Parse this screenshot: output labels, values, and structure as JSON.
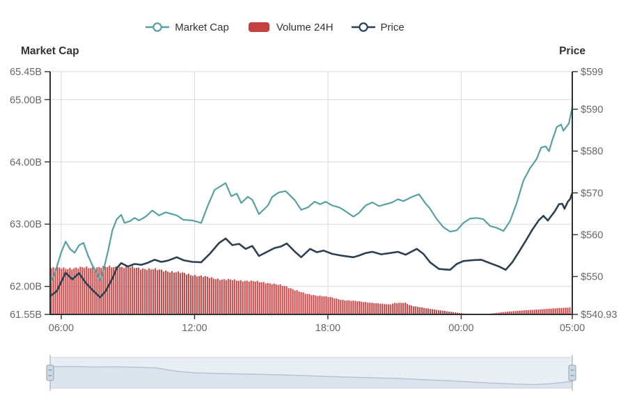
{
  "legend": {
    "items": [
      {
        "label": "Market Cap",
        "marker": "line-circle",
        "color": "#55a0a2"
      },
      {
        "label": "Volume 24H",
        "marker": "rect",
        "color": "#c54040"
      },
      {
        "label": "Price",
        "marker": "line-circle",
        "color": "#2c3f52"
      }
    ]
  },
  "colors": {
    "market_cap": "#55a0a2",
    "price": "#2c3f52",
    "volume": "#cb4343",
    "grid": "#d9d9d9",
    "axis_line": "#2f2f2f",
    "axis_label": "#666666",
    "title": "#333333"
  },
  "chart_data": {
    "type": "mixed",
    "x_axis": {
      "unit": "time",
      "domain_hours": [
        0,
        23.5
      ],
      "ticks": [
        {
          "label": "06:00",
          "t": 0.5
        },
        {
          "label": "12:00",
          "t": 6.5
        },
        {
          "label": "18:00",
          "t": 12.5
        },
        {
          "label": "00:00",
          "t": 18.5
        },
        {
          "label": "05:00",
          "t": 23.5
        }
      ]
    },
    "left_axis": {
      "title": "Market Cap",
      "range": [
        61.55,
        65.45
      ],
      "ticks": [
        {
          "value": 65.45,
          "label": "65.45B"
        },
        {
          "value": 65.0,
          "label": "65.00B"
        },
        {
          "value": 64.0,
          "label": "64.00B"
        },
        {
          "value": 63.0,
          "label": "63.00B"
        },
        {
          "value": 62.0,
          "label": "62.00B"
        },
        {
          "value": 61.55,
          "label": "61.55B"
        }
      ]
    },
    "right_axis": {
      "title": "Price",
      "range": [
        540.93,
        599
      ],
      "ticks": [
        {
          "value": 599,
          "label": "$599"
        },
        {
          "value": 590,
          "label": "$590"
        },
        {
          "value": 580,
          "label": "$580"
        },
        {
          "value": 570,
          "label": "$570"
        },
        {
          "value": 560,
          "label": "$560"
        },
        {
          "value": 550,
          "label": "$550"
        },
        {
          "value": 540.93,
          "label": "$540.93"
        }
      ]
    },
    "grid": true,
    "legend_position": "top",
    "series": [
      {
        "name": "Market Cap",
        "type": "line",
        "axis": "left",
        "color": "#55a0a2",
        "unit": "B",
        "points": [
          [
            0,
            62.05
          ],
          [
            0.2,
            62.2
          ],
          [
            0.5,
            62.55
          ],
          [
            0.7,
            62.72
          ],
          [
            0.9,
            62.6
          ],
          [
            1.1,
            62.54
          ],
          [
            1.3,
            62.66
          ],
          [
            1.5,
            62.7
          ],
          [
            1.7,
            62.5
          ],
          [
            1.9,
            62.34
          ],
          [
            2.1,
            62.22
          ],
          [
            2.25,
            62.1
          ],
          [
            2.4,
            62.26
          ],
          [
            2.6,
            62.56
          ],
          [
            2.8,
            62.9
          ],
          [
            3,
            63.08
          ],
          [
            3.2,
            63.15
          ],
          [
            3.35,
            63.02
          ],
          [
            3.6,
            63.05
          ],
          [
            3.8,
            63.1
          ],
          [
            4,
            63.06
          ],
          [
            4.3,
            63.12
          ],
          [
            4.6,
            63.22
          ],
          [
            4.9,
            63.14
          ],
          [
            5.2,
            63.19
          ],
          [
            5.5,
            63.16
          ],
          [
            5.7,
            63.14
          ],
          [
            6,
            63.07
          ],
          [
            6.4,
            63.06
          ],
          [
            6.8,
            63.02
          ],
          [
            7.1,
            63.3
          ],
          [
            7.4,
            63.55
          ],
          [
            7.9,
            63.66
          ],
          [
            8.15,
            63.45
          ],
          [
            8.4,
            63.49
          ],
          [
            8.6,
            63.34
          ],
          [
            8.9,
            63.44
          ],
          [
            9.1,
            63.39
          ],
          [
            9.4,
            63.16
          ],
          [
            9.8,
            63.3
          ],
          [
            10,
            63.44
          ],
          [
            10.3,
            63.51
          ],
          [
            10.6,
            63.53
          ],
          [
            11,
            63.39
          ],
          [
            11.3,
            63.23
          ],
          [
            11.6,
            63.27
          ],
          [
            11.9,
            63.36
          ],
          [
            12.15,
            63.32
          ],
          [
            12.4,
            63.36
          ],
          [
            12.7,
            63.3
          ],
          [
            13,
            63.27
          ],
          [
            13.2,
            63.23
          ],
          [
            13.65,
            63.12
          ],
          [
            13.9,
            63.18
          ],
          [
            14.2,
            63.3
          ],
          [
            14.5,
            63.35
          ],
          [
            14.8,
            63.29
          ],
          [
            15.1,
            63.32
          ],
          [
            15.4,
            63.35
          ],
          [
            15.65,
            63.4
          ],
          [
            15.9,
            63.37
          ],
          [
            16.3,
            63.44
          ],
          [
            16.6,
            63.48
          ],
          [
            16.9,
            63.33
          ],
          [
            17.1,
            63.25
          ],
          [
            17.4,
            63.08
          ],
          [
            17.7,
            62.95
          ],
          [
            18,
            62.88
          ],
          [
            18.3,
            62.9
          ],
          [
            18.6,
            63.02
          ],
          [
            18.9,
            63.09
          ],
          [
            19.2,
            63.1
          ],
          [
            19.5,
            63.08
          ],
          [
            19.8,
            62.97
          ],
          [
            20.1,
            62.94
          ],
          [
            20.4,
            62.89
          ],
          [
            20.7,
            63.05
          ],
          [
            21,
            63.34
          ],
          [
            21.3,
            63.7
          ],
          [
            21.6,
            63.9
          ],
          [
            21.9,
            64.05
          ],
          [
            22.1,
            64.23
          ],
          [
            22.3,
            64.25
          ],
          [
            22.45,
            64.17
          ],
          [
            22.6,
            64.35
          ],
          [
            22.8,
            64.56
          ],
          [
            23,
            64.6
          ],
          [
            23.1,
            64.5
          ],
          [
            23.25,
            64.57
          ],
          [
            23.35,
            64.62
          ],
          [
            23.5,
            64.88
          ]
        ]
      },
      {
        "name": "Price",
        "type": "line",
        "axis": "right",
        "color": "#2c3f52",
        "unit": "$",
        "points": [
          [
            0,
            545.3
          ],
          [
            0.3,
            546.5
          ],
          [
            0.7,
            550.9
          ],
          [
            1,
            549.3
          ],
          [
            1.3,
            550.8
          ],
          [
            1.6,
            548.5
          ],
          [
            1.9,
            546.8
          ],
          [
            2.25,
            545
          ],
          [
            2.5,
            546.5
          ],
          [
            2.8,
            549.5
          ],
          [
            3,
            552
          ],
          [
            3.2,
            553.2
          ],
          [
            3.5,
            552.4
          ],
          [
            3.8,
            553
          ],
          [
            4.1,
            552.8
          ],
          [
            4.4,
            553.3
          ],
          [
            4.7,
            554
          ],
          [
            5,
            553.5
          ],
          [
            5.3,
            553.8
          ],
          [
            5.7,
            554.6
          ],
          [
            6,
            553.9
          ],
          [
            6.4,
            553.5
          ],
          [
            6.8,
            553.4
          ],
          [
            7.2,
            555.5
          ],
          [
            7.6,
            558
          ],
          [
            7.9,
            559.1
          ],
          [
            8.2,
            557.5
          ],
          [
            8.5,
            557.8
          ],
          [
            8.8,
            556.6
          ],
          [
            9.1,
            557.3
          ],
          [
            9.4,
            554.9
          ],
          [
            9.8,
            556
          ],
          [
            10.1,
            556.8
          ],
          [
            10.4,
            557.2
          ],
          [
            10.65,
            557.9
          ],
          [
            11,
            556
          ],
          [
            11.3,
            554.6
          ],
          [
            11.7,
            556.6
          ],
          [
            12,
            555.8
          ],
          [
            12.3,
            556.2
          ],
          [
            12.7,
            555.4
          ],
          [
            13.1,
            555
          ],
          [
            13.65,
            554.6
          ],
          [
            13.9,
            555
          ],
          [
            14.2,
            555.6
          ],
          [
            14.5,
            555.9
          ],
          [
            14.9,
            555.3
          ],
          [
            15.3,
            555.6
          ],
          [
            15.65,
            555.9
          ],
          [
            16,
            555.2
          ],
          [
            16.5,
            556.6
          ],
          [
            16.8,
            555.4
          ],
          [
            17.1,
            553.4
          ],
          [
            17.5,
            551.8
          ],
          [
            18,
            551.6
          ],
          [
            18.3,
            553
          ],
          [
            18.6,
            553.7
          ],
          [
            19,
            553.9
          ],
          [
            19.4,
            554
          ],
          [
            19.8,
            553.2
          ],
          [
            20.2,
            552.4
          ],
          [
            20.5,
            551.6
          ],
          [
            20.8,
            553.4
          ],
          [
            21.1,
            555.9
          ],
          [
            21.4,
            558.5
          ],
          [
            21.7,
            561.2
          ],
          [
            22,
            563.5
          ],
          [
            22.2,
            564.5
          ],
          [
            22.4,
            563.4
          ],
          [
            22.7,
            565.5
          ],
          [
            22.9,
            567.3
          ],
          [
            23.05,
            567.4
          ],
          [
            23.15,
            566.2
          ],
          [
            23.3,
            567.9
          ],
          [
            23.4,
            568.5
          ],
          [
            23.5,
            570
          ]
        ]
      },
      {
        "name": "Volume 24H",
        "type": "bar",
        "axis": "relative",
        "color": "#cb4343",
        "unit": "relative (no labeled axis)",
        "points": [
          [
            0,
            0.97
          ],
          [
            1,
            0.97
          ],
          [
            2.1,
            0.99
          ],
          [
            3.2,
            1
          ],
          [
            4,
            0.97
          ],
          [
            5,
            0.93
          ],
          [
            5.9,
            0.87
          ],
          [
            6.8,
            0.8
          ],
          [
            7.8,
            0.73
          ],
          [
            8.7,
            0.71
          ],
          [
            9.7,
            0.67
          ],
          [
            10.6,
            0.59
          ],
          [
            11.5,
            0.43
          ],
          [
            12.6,
            0.36
          ],
          [
            13.2,
            0.3
          ],
          [
            14,
            0.27
          ],
          [
            14.7,
            0.23
          ],
          [
            15.3,
            0.21
          ],
          [
            15.5,
            0.24
          ],
          [
            16,
            0.24
          ],
          [
            16.2,
            0.19
          ],
          [
            16.9,
            0.13
          ],
          [
            17.8,
            0.07
          ],
          [
            18.4,
            0.03
          ],
          [
            18.8,
            0.01
          ],
          [
            19.5,
            0
          ],
          [
            19.9,
            0.02
          ],
          [
            20.6,
            0.06
          ],
          [
            21.5,
            0.09
          ],
          [
            22.2,
            0.11
          ],
          [
            22.8,
            0.13
          ],
          [
            23.5,
            0.15
          ]
        ]
      }
    ]
  },
  "navigator": {
    "points": [
      [
        0,
        0.3
      ],
      [
        1,
        0.29
      ],
      [
        2,
        0.31
      ],
      [
        3,
        0.3
      ],
      [
        4,
        0.32
      ],
      [
        4.8,
        0.34
      ],
      [
        5.6,
        0.44
      ],
      [
        6.5,
        0.5
      ],
      [
        8,
        0.53
      ],
      [
        9.5,
        0.55
      ],
      [
        11,
        0.58
      ],
      [
        12.5,
        0.62
      ],
      [
        14,
        0.65
      ],
      [
        15.5,
        0.68
      ],
      [
        17,
        0.73
      ],
      [
        18,
        0.76
      ],
      [
        19,
        0.8
      ],
      [
        20,
        0.84
      ],
      [
        21,
        0.87
      ],
      [
        21.8,
        0.88
      ],
      [
        22.5,
        0.86
      ],
      [
        23,
        0.82
      ],
      [
        23.5,
        0.78
      ]
    ],
    "colors": {
      "strip_bg": "#e9eef4",
      "area_fill": "#dbe3ed",
      "line": "#b6c3d2",
      "border": "#c9d3de",
      "handle_fill": "#cfd9e3",
      "handle_border": "#90a3b5"
    }
  }
}
